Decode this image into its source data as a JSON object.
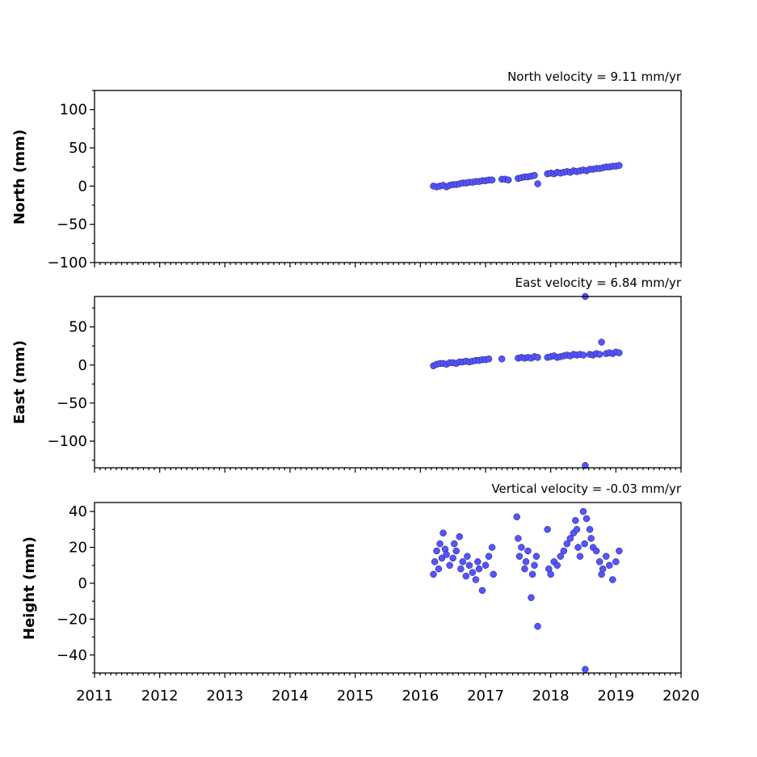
{
  "chart_data": [
    {
      "type": "scatter",
      "title": "North velocity = 9.11 mm/yr",
      "ylabel": "North (mm)",
      "xlim": [
        2011,
        2020
      ],
      "ylim": [
        -100,
        125
      ],
      "yticks": [
        100,
        50,
        0,
        -50,
        -100
      ],
      "ytick_labels": [
        "100",
        "50",
        "0",
        "−50",
        "−100"
      ],
      "marker_color": "#5555ff",
      "series": [
        {
          "x": [
            2016.2,
            2016.25,
            2016.3,
            2016.35,
            2016.4,
            2016.45,
            2016.5,
            2016.55,
            2016.6,
            2016.65,
            2016.7,
            2016.75,
            2016.8,
            2016.85,
            2016.9,
            2016.95,
            2017.0,
            2017.05,
            2017.1,
            2017.25,
            2017.3,
            2017.35,
            2017.5,
            2017.55,
            2017.6,
            2017.65,
            2017.7,
            2017.75,
            2017.8,
            2017.95,
            2018.0,
            2018.05,
            2018.1,
            2018.15,
            2018.2,
            2018.25,
            2018.3,
            2018.35,
            2018.4,
            2018.45,
            2018.5,
            2018.55,
            2018.6,
            2018.65,
            2018.7,
            2018.75,
            2018.8,
            2018.85,
            2018.9,
            2018.95,
            2019.0,
            2019.05
          ],
          "y": [
            0,
            -1,
            0,
            1,
            -1,
            1,
            2,
            2,
            3,
            4,
            4,
            5,
            5,
            6,
            6,
            7,
            7,
            8,
            8,
            9,
            9,
            8,
            10,
            11,
            12,
            12,
            13,
            14,
            3,
            16,
            17,
            16,
            18,
            17,
            18,
            19,
            18,
            20,
            19,
            20,
            21,
            20,
            22,
            22,
            23,
            23,
            24,
            25,
            25,
            26,
            26,
            27
          ]
        }
      ]
    },
    {
      "type": "scatter",
      "title": "East velocity = 6.84 mm/yr",
      "ylabel": "East (mm)",
      "xlim": [
        2011,
        2020
      ],
      "ylim": [
        -135,
        90
      ],
      "yticks": [
        50,
        0,
        -50,
        -100
      ],
      "ytick_labels": [
        "50",
        "0",
        "−50",
        "−100"
      ],
      "marker_color": "#5555ff",
      "series": [
        {
          "x": [
            2016.2,
            2016.25,
            2016.3,
            2016.35,
            2016.4,
            2016.45,
            2016.5,
            2016.55,
            2016.6,
            2016.65,
            2016.7,
            2016.75,
            2016.8,
            2016.85,
            2016.9,
            2016.95,
            2017.0,
            2017.05,
            2017.25,
            2017.5,
            2017.55,
            2017.6,
            2017.65,
            2017.7,
            2017.75,
            2017.8,
            2017.95,
            2018.0,
            2018.05,
            2018.1,
            2018.15,
            2018.2,
            2018.25,
            2018.3,
            2018.35,
            2018.4,
            2018.45,
            2018.5,
            2018.53,
            2018.53,
            2018.6,
            2018.65,
            2018.7,
            2018.75,
            2018.78,
            2018.85,
            2018.9,
            2018.95,
            2019.0,
            2019.05
          ],
          "y": [
            -1,
            1,
            2,
            2,
            1,
            3,
            3,
            2,
            4,
            4,
            5,
            4,
            5,
            6,
            6,
            7,
            7,
            8,
            8,
            9,
            10,
            9,
            10,
            9,
            11,
            10,
            10,
            11,
            12,
            10,
            11,
            12,
            13,
            12,
            14,
            13,
            14,
            13,
            90,
            -132,
            14,
            13,
            15,
            14,
            30,
            15,
            16,
            15,
            17,
            16
          ]
        }
      ]
    },
    {
      "type": "scatter",
      "title": "Vertical velocity = -0.03 mm/yr",
      "ylabel": "Height (mm)",
      "xlabel": "",
      "xlim": [
        2011,
        2020
      ],
      "ylim": [
        -50,
        45
      ],
      "yticks": [
        40,
        20,
        0,
        -20,
        -40
      ],
      "ytick_labels": [
        "40",
        "20",
        "0",
        "−20",
        "−40"
      ],
      "xticks": [
        2011,
        2012,
        2013,
        2014,
        2015,
        2016,
        2017,
        2018,
        2019,
        2020
      ],
      "xtick_labels": [
        "2011",
        "2012",
        "2013",
        "2014",
        "2015",
        "2016",
        "2017",
        "2018",
        "2019",
        "2020"
      ],
      "marker_color": "#5555ff",
      "series": [
        {
          "x": [
            2016.2,
            2016.22,
            2016.25,
            2016.28,
            2016.3,
            2016.33,
            2016.35,
            2016.38,
            2016.4,
            2016.45,
            2016.5,
            2016.52,
            2016.55,
            2016.6,
            2016.62,
            2016.65,
            2016.7,
            2016.72,
            2016.75,
            2016.8,
            2016.85,
            2016.88,
            2016.9,
            2016.95,
            2017.0,
            2017.05,
            2017.1,
            2017.12,
            2017.48,
            2017.5,
            2017.52,
            2017.55,
            2017.6,
            2017.62,
            2017.65,
            2017.7,
            2017.72,
            2017.75,
            2017.78,
            2017.8,
            2017.95,
            2017.97,
            2018.0,
            2018.05,
            2018.1,
            2018.15,
            2018.2,
            2018.25,
            2018.3,
            2018.35,
            2018.38,
            2018.4,
            2018.42,
            2018.45,
            2018.5,
            2018.52,
            2018.53,
            2018.55,
            2018.6,
            2018.62,
            2018.65,
            2018.7,
            2018.75,
            2018.78,
            2018.8,
            2018.85,
            2018.9,
            2018.95,
            2019.0,
            2019.05
          ],
          "y": [
            5,
            12,
            18,
            8,
            22,
            14,
            28,
            19,
            16,
            10,
            14,
            22,
            18,
            26,
            8,
            12,
            4,
            15,
            10,
            6,
            2,
            12,
            8,
            -4,
            10,
            15,
            20,
            5,
            37,
            25,
            15,
            20,
            8,
            12,
            18,
            -8,
            5,
            10,
            15,
            -24,
            30,
            8,
            5,
            12,
            10,
            15,
            18,
            22,
            25,
            28,
            35,
            30,
            20,
            15,
            40,
            22,
            -48,
            36,
            30,
            25,
            20,
            18,
            12,
            5,
            8,
            15,
            10,
            2,
            12,
            18
          ]
        }
      ]
    }
  ]
}
